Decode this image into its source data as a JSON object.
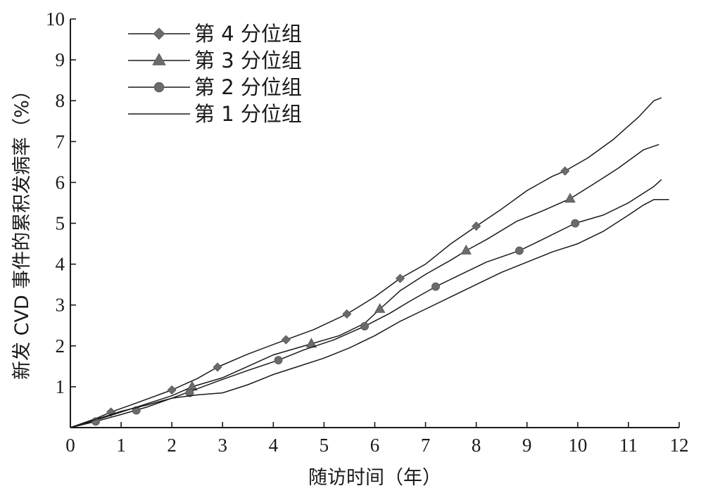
{
  "chart_data": {
    "type": "line",
    "xlabel": "随访时间（年）",
    "ylabel": "新发 CVD 事件的累积发病率（%）",
    "xlim": [
      0,
      12
    ],
    "ylim": [
      0,
      10
    ],
    "xticks": [
      "0",
      "1",
      "2",
      "3",
      "4",
      "5",
      "6",
      "7",
      "8",
      "9",
      "10",
      "11",
      "12"
    ],
    "yticks": [
      "1",
      "2",
      "3",
      "4",
      "5",
      "6",
      "7",
      "8",
      "9",
      "10"
    ],
    "grid": false,
    "legend_position": "top-left",
    "colors": {
      "line": "#1a1a1a",
      "marker": "#6b6b6b"
    },
    "series": [
      {
        "name": "第 4 分位组",
        "marker": "diamond",
        "x": [
          0,
          0.5,
          0.8,
          1.3,
          2.0,
          2.5,
          2.9,
          3.5,
          4.25,
          4.8,
          5.45,
          6.0,
          6.5,
          7.0,
          7.5,
          8.0,
          8.5,
          9.0,
          9.5,
          9.75,
          10.2,
          10.7,
          11.2,
          11.5,
          11.65
        ],
        "y": [
          0,
          0.22,
          0.38,
          0.6,
          0.92,
          1.2,
          1.48,
          1.8,
          2.15,
          2.4,
          2.78,
          3.2,
          3.65,
          4.0,
          4.5,
          4.93,
          5.35,
          5.8,
          6.15,
          6.28,
          6.6,
          7.05,
          7.6,
          8.0,
          8.07
        ],
        "marker_x": [
          0.8,
          2.0,
          2.9,
          4.25,
          5.45,
          6.5,
          8.0,
          9.75
        ],
        "marker_y": [
          0.38,
          0.92,
          1.48,
          2.15,
          2.78,
          3.65,
          4.93,
          6.28
        ]
      },
      {
        "name": "第 3 分位组",
        "marker": "triangle",
        "x": [
          0,
          0.5,
          1.0,
          1.5,
          2.0,
          2.4,
          3.0,
          3.5,
          4.0,
          4.75,
          5.3,
          5.8,
          6.1,
          6.5,
          7.0,
          7.5,
          7.8,
          8.2,
          8.8,
          9.3,
          9.85,
          10.3,
          10.8,
          11.3,
          11.6
        ],
        "y": [
          0,
          0.18,
          0.38,
          0.58,
          0.78,
          1.0,
          1.22,
          1.5,
          1.78,
          2.05,
          2.25,
          2.55,
          2.9,
          3.35,
          3.75,
          4.1,
          4.33,
          4.6,
          5.05,
          5.3,
          5.6,
          5.95,
          6.35,
          6.8,
          6.93
        ],
        "marker_x": [
          2.4,
          4.75,
          6.1,
          7.8,
          9.85
        ],
        "marker_y": [
          1.0,
          2.05,
          2.9,
          4.33,
          5.6
        ]
      },
      {
        "name": "第 2 分位组",
        "marker": "circle",
        "x": [
          0,
          0.5,
          1.0,
          1.5,
          2.0,
          2.5,
          3.0,
          3.5,
          4.1,
          4.6,
          5.2,
          5.8,
          6.3,
          6.7,
          7.2,
          7.7,
          8.2,
          8.85,
          9.3,
          9.95,
          10.5,
          11.0,
          11.5,
          11.65
        ],
        "y": [
          0,
          0.15,
          0.32,
          0.5,
          0.72,
          0.95,
          1.18,
          1.4,
          1.65,
          1.9,
          2.15,
          2.48,
          2.8,
          3.1,
          3.45,
          3.75,
          4.05,
          4.33,
          4.6,
          5.0,
          5.2,
          5.5,
          5.9,
          6.07
        ],
        "marker_x": [
          0.5,
          1.3,
          2.35,
          4.1,
          5.8,
          7.2,
          8.85,
          9.95
        ],
        "marker_y": [
          0.15,
          0.42,
          0.85,
          1.65,
          2.48,
          3.45,
          4.33,
          5.0
        ]
      },
      {
        "name": "第 1 分位组",
        "marker": "none",
        "x": [
          0,
          0.5,
          1.0,
          1.5,
          2.0,
          2.5,
          3.0,
          3.5,
          4.0,
          4.5,
          5.0,
          5.5,
          6.0,
          6.5,
          7.0,
          7.5,
          8.0,
          8.5,
          9.0,
          9.5,
          10.0,
          10.5,
          11.0,
          11.3,
          11.5,
          11.8
        ],
        "y": [
          0,
          0.2,
          0.4,
          0.55,
          0.72,
          0.8,
          0.85,
          1.05,
          1.3,
          1.5,
          1.7,
          1.95,
          2.25,
          2.6,
          2.9,
          3.2,
          3.5,
          3.8,
          4.05,
          4.3,
          4.5,
          4.8,
          5.2,
          5.45,
          5.58,
          5.58
        ]
      }
    ]
  }
}
